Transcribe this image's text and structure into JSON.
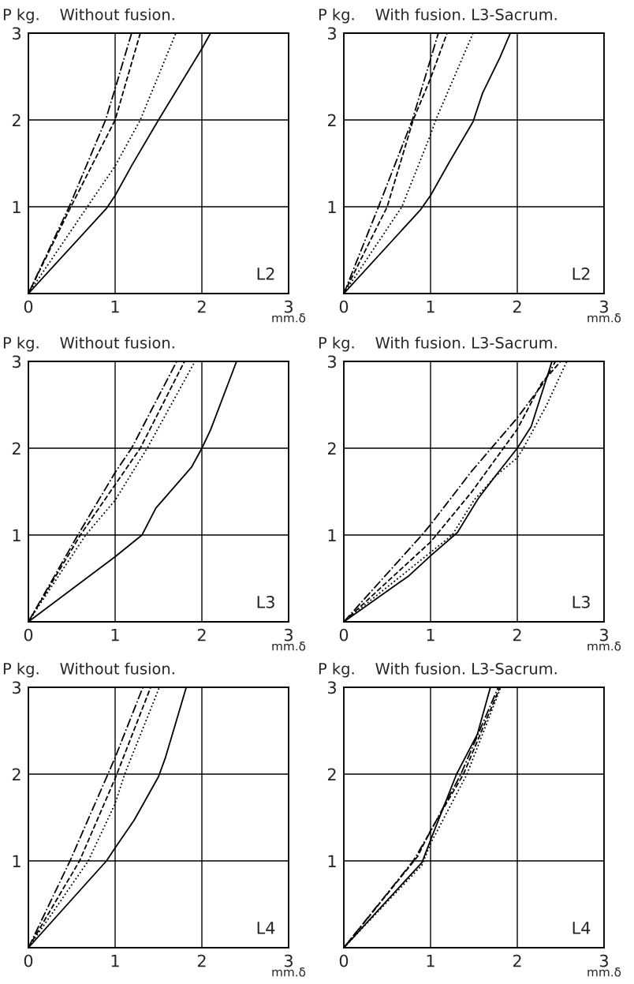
{
  "chart_data": [
    {
      "type": "line",
      "title": "Without fusion.",
      "ylabel": "P kg.",
      "xlabel": "mm.δ",
      "annotations": [
        "L2"
      ],
      "xlim": [
        0,
        3
      ],
      "ylim": [
        0,
        3
      ],
      "xticks": [
        0,
        1,
        2,
        3
      ],
      "yticks": [
        1,
        2,
        3
      ],
      "grid": true,
      "series": [
        {
          "color": "#000000",
          "line_style": "solid",
          "x": [
            0,
            0.9,
            1.0,
            1.2,
            1.5,
            2.0,
            2.1
          ],
          "values": [
            0,
            0.98,
            1.13,
            1.49,
            2.0,
            2.82,
            3.0
          ]
        },
        {
          "color": "#000000",
          "line_style": "dotted",
          "x": [
            0,
            0.68,
            1.0,
            1.29,
            1.7
          ],
          "values": [
            0,
            1.0,
            1.47,
            2.0,
            3.0
          ]
        },
        {
          "color": "#000000",
          "line_style": "dashed",
          "x": [
            0,
            0.49,
            1.0,
            1.29
          ],
          "values": [
            0,
            1.0,
            2.0,
            3.0
          ]
        },
        {
          "color": "#000000",
          "line_style": "dashdot",
          "x": [
            0,
            0.47,
            0.89,
            1.0,
            1.19
          ],
          "values": [
            0,
            1.0,
            2.0,
            2.36,
            3.0
          ]
        }
      ]
    },
    {
      "type": "line",
      "title": "With fusion. L3-Sacrum.",
      "ylabel": "P kg.",
      "xlabel": "mm.δ",
      "annotations": [
        "L2"
      ],
      "xlim": [
        0,
        3
      ],
      "ylim": [
        0,
        3
      ],
      "xticks": [
        0,
        1,
        2,
        3
      ],
      "yticks": [
        1,
        2,
        3
      ],
      "grid": true,
      "series": [
        {
          "color": "#000000",
          "line_style": "solid",
          "x": [
            0,
            0.88,
            1.0,
            1.22,
            1.49,
            1.6,
            1.8,
            1.92
          ],
          "values": [
            0,
            0.96,
            1.13,
            1.52,
            1.98,
            2.31,
            2.72,
            3.0
          ]
        },
        {
          "color": "#000000",
          "line_style": "dotted",
          "x": [
            0,
            0.67,
            1.0,
            1.06,
            1.49
          ],
          "values": [
            0,
            1.0,
            1.83,
            2.0,
            3.0
          ]
        },
        {
          "color": "#000000",
          "line_style": "dashed",
          "x": [
            0,
            0.5,
            0.8,
            1.0,
            1.19
          ],
          "values": [
            0,
            1.0,
            2.0,
            2.48,
            3.0
          ]
        },
        {
          "color": "#000000",
          "line_style": "dashdot",
          "x": [
            0,
            0.4,
            0.79,
            1.09
          ],
          "values": [
            0,
            1.0,
            2.0,
            3.0
          ]
        }
      ]
    },
    {
      "type": "line",
      "title": "Without fusion.",
      "ylabel": "P kg.",
      "xlabel": "mm.δ",
      "annotations": [
        "L3"
      ],
      "xlim": [
        0,
        3
      ],
      "ylim": [
        0,
        3
      ],
      "xticks": [
        0,
        1,
        2,
        3
      ],
      "yticks": [
        1,
        2,
        3
      ],
      "grid": true,
      "series": [
        {
          "color": "#000000",
          "line_style": "solid",
          "x": [
            0,
            1.0,
            1.31,
            1.47,
            1.88,
            2.0,
            2.1,
            2.4
          ],
          "values": [
            0,
            0.75,
            1.0,
            1.31,
            1.78,
            2.0,
            2.21,
            3.0
          ]
        },
        {
          "color": "#000000",
          "line_style": "dotted",
          "x": [
            0,
            0.66,
            1.0,
            1.37,
            1.92
          ],
          "values": [
            0,
            1.0,
            1.4,
            2.0,
            3.0
          ]
        },
        {
          "color": "#000000",
          "line_style": "dashed",
          "x": [
            0,
            0.6,
            1.0,
            1.29,
            1.8
          ],
          "values": [
            0,
            1.0,
            1.58,
            2.0,
            3.0
          ]
        },
        {
          "color": "#000000",
          "line_style": "dashdot",
          "x": [
            0,
            0.57,
            1.0,
            1.19,
            1.71
          ],
          "values": [
            0,
            1.0,
            1.72,
            2.0,
            3.0
          ]
        }
      ]
    },
    {
      "type": "line",
      "title": "With fusion. L3-Sacrum.",
      "ylabel": "P kg.",
      "xlabel": "mm.δ",
      "annotations": [
        "L3"
      ],
      "xlim": [
        0,
        3
      ],
      "ylim": [
        0,
        3
      ],
      "xticks": [
        0,
        1,
        2,
        3
      ],
      "yticks": [
        1,
        2,
        3
      ],
      "grid": true,
      "series": [
        {
          "color": "#000000",
          "line_style": "solid",
          "x": [
            0,
            0.75,
            1.0,
            1.31,
            1.55,
            1.74,
            2.0,
            2.16,
            2.4
          ],
          "values": [
            0,
            0.53,
            0.76,
            1.03,
            1.42,
            1.67,
            2.0,
            2.25,
            3.0
          ]
        },
        {
          "color": "#000000",
          "line_style": "dotted",
          "x": [
            0,
            1.0,
            1.25,
            1.5,
            1.75,
            2.0,
            2.07,
            2.34,
            2.57
          ],
          "values": [
            0,
            0.8,
            1.0,
            1.4,
            1.68,
            1.89,
            2.0,
            2.5,
            3.0
          ]
        },
        {
          "color": "#000000",
          "line_style": "dashed",
          "x": [
            0,
            1.0,
            1.47,
            2.0,
            2.28,
            2.5
          ],
          "values": [
            0,
            0.92,
            1.49,
            2.22,
            2.75,
            3.0
          ]
        },
        {
          "color": "#000000",
          "line_style": "dashdot",
          "x": [
            0,
            0.9,
            1.0,
            1.47,
            2.0,
            2.3,
            2.44
          ],
          "values": [
            0,
            1.0,
            1.12,
            1.73,
            2.35,
            2.75,
            3.0
          ]
        }
      ]
    },
    {
      "type": "line",
      "title": "Without fusion.",
      "ylabel": "P kg.",
      "xlabel": "mm.δ",
      "annotations": [
        "L4"
      ],
      "xlim": [
        0,
        3
      ],
      "ylim": [
        0,
        3
      ],
      "xticks": [
        0,
        1,
        2,
        3
      ],
      "yticks": [
        1,
        2,
        3
      ],
      "grid": true,
      "series": [
        {
          "color": "#000000",
          "line_style": "solid",
          "x": [
            0,
            0.9,
            1.0,
            1.22,
            1.5,
            1.58,
            1.69,
            1.82
          ],
          "values": [
            0,
            1.0,
            1.15,
            1.47,
            1.97,
            2.19,
            2.56,
            3.0
          ]
        },
        {
          "color": "#000000",
          "line_style": "dotted",
          "x": [
            0,
            0.69,
            1.0,
            1.11,
            1.51
          ],
          "values": [
            0,
            1.0,
            1.66,
            2.0,
            3.0
          ]
        },
        {
          "color": "#000000",
          "line_style": "dashed",
          "x": [
            0,
            0.59,
            1.0,
            1.41
          ],
          "values": [
            0,
            1.0,
            1.95,
            3.0
          ]
        },
        {
          "color": "#000000",
          "line_style": "dashdot",
          "x": [
            0,
            0.48,
            1.0,
            1.32
          ],
          "values": [
            0,
            1.0,
            2.19,
            3.0
          ]
        }
      ]
    },
    {
      "type": "line",
      "title": "With fusion. L3-Sacrum.",
      "ylabel": "P kg.",
      "xlabel": "mm.δ",
      "annotations": [
        "L4"
      ],
      "xlim": [
        0,
        3
      ],
      "ylim": [
        0,
        3
      ],
      "xticks": [
        0,
        1,
        2,
        3
      ],
      "yticks": [
        1,
        2,
        3
      ],
      "grid": true,
      "series": [
        {
          "color": "#000000",
          "line_style": "solid",
          "x": [
            0,
            0.9,
            1.0,
            1.3,
            1.54,
            1.69
          ],
          "values": [
            0,
            0.98,
            1.24,
            2.0,
            2.46,
            3.0
          ]
        },
        {
          "color": "#000000",
          "line_style": "dotted",
          "x": [
            0,
            0.9,
            1.0,
            1.42,
            1.81
          ],
          "values": [
            0,
            0.95,
            1.2,
            2.0,
            3.0
          ]
        },
        {
          "color": "#000000",
          "line_style": "dashed",
          "x": [
            0,
            0.85,
            1.0,
            1.38,
            1.8
          ],
          "values": [
            0,
            1.05,
            1.35,
            2.0,
            3.0
          ]
        },
        {
          "color": "#000000",
          "line_style": "dashdot",
          "x": [
            0,
            0.8,
            1.0,
            1.35,
            1.78
          ],
          "values": [
            0,
            1.0,
            1.34,
            2.0,
            3.0
          ]
        }
      ]
    }
  ]
}
